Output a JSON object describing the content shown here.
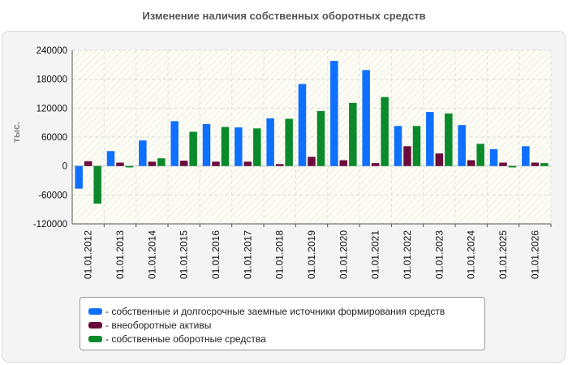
{
  "title": "Изменение наличия собственных оборотных средств",
  "chart_data": {
    "type": "bar",
    "title": "Изменение наличия собственных оборотных средств",
    "ylabel": "тыс.",
    "xlabel": "",
    "ylim": [
      -120000,
      240000
    ],
    "yticks": [
      240000,
      180000,
      120000,
      60000,
      0,
      -60000,
      -120000
    ],
    "grid": true,
    "legend_position": "bottom",
    "categories": [
      "01.01.2012",
      "01.01.2013",
      "01.01.2014",
      "01.01.2015",
      "01.01.2016",
      "01.01.2017",
      "01.01.2018",
      "01.01.2019",
      "01.01.2020",
      "01.01.2021",
      "01.01.2022",
      "01.01.2023",
      "01.01.2024",
      "01.01.2025",
      "01.01.2026"
    ],
    "series": [
      {
        "name": "собственные и долгосрочные заемные источники формирования средств",
        "color": "#0f6fff",
        "values": [
          -47000,
          31000,
          53000,
          93000,
          87000,
          80000,
          99000,
          170000,
          218000,
          199000,
          83000,
          112000,
          85000,
          35000,
          41000
        ]
      },
      {
        "name": "внеоборотные активы",
        "color": "#6b0b3c",
        "values": [
          10000,
          7000,
          9000,
          11000,
          9000,
          9000,
          4000,
          19000,
          12000,
          6000,
          41000,
          26000,
          12000,
          7000,
          7000
        ]
      },
      {
        "name": "собственные оборотные средства",
        "color": "#0a8a2a",
        "values": [
          -78000,
          -3000,
          16000,
          71000,
          81000,
          78000,
          98000,
          114000,
          131000,
          143000,
          83000,
          109000,
          46000,
          -3000,
          6000
        ]
      }
    ]
  }
}
